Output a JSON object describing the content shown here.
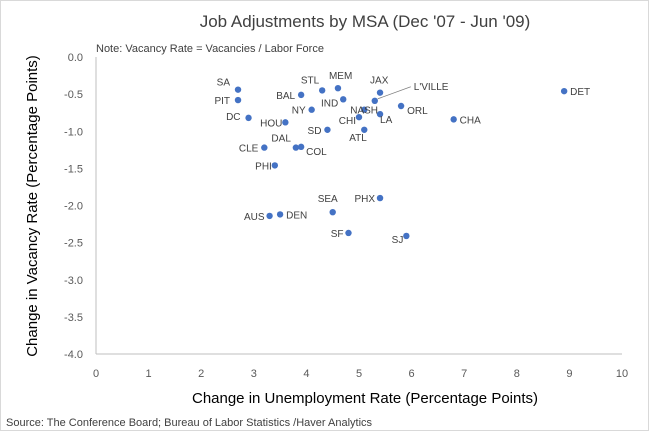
{
  "chart_data": {
    "type": "scatter",
    "title": "Job Adjustments by MSA (Dec '07 - Jun '09)",
    "note": "Note:  Vacancy Rate = Vacancies / Labor Force",
    "xlabel": "Change in Unemployment Rate (Percentage Points)",
    "ylabel": "Change in Vacancy Rate (Percentage Points)",
    "source": "Source: The Conference Board; Bureau of Labor Statistics /Haver Analytics",
    "xlim": [
      0,
      10
    ],
    "ylim": [
      -4.0,
      0.0
    ],
    "x_ticks": [
      0,
      1,
      2,
      3,
      4,
      5,
      6,
      7,
      8,
      9,
      10
    ],
    "x_tick_labels": [
      "0",
      "1",
      "2",
      "3",
      "4",
      "5",
      "6",
      "7",
      "8",
      "9",
      "10"
    ],
    "y_ticks": [
      0.0,
      -0.5,
      -1.0,
      -1.5,
      -2.0,
      -2.5,
      -3.0,
      -3.5,
      -4.0
    ],
    "y_tick_labels": [
      "0.0",
      "-0.5",
      "-1.0",
      "-1.5",
      "-2.0",
      "-2.5",
      "-3.0",
      "-3.5",
      "-4.0"
    ],
    "grid": false,
    "marker_color": "#4472c4",
    "points": [
      {
        "label": "SA",
        "x": 2.7,
        "y": -0.44
      },
      {
        "label": "PIT",
        "x": 2.7,
        "y": -0.58
      },
      {
        "label": "DC",
        "x": 2.9,
        "y": -0.82
      },
      {
        "label": "HOU",
        "x": 3.6,
        "y": -0.88
      },
      {
        "label": "BAL",
        "x": 3.9,
        "y": -0.51
      },
      {
        "label": "STL",
        "x": 4.3,
        "y": -0.45
      },
      {
        "label": "MEM",
        "x": 4.6,
        "y": -0.42
      },
      {
        "label": "NY",
        "x": 4.1,
        "y": -0.71
      },
      {
        "label": "IND",
        "x": 4.7,
        "y": -0.57
      },
      {
        "label": "JAX",
        "x": 5.4,
        "y": -0.48
      },
      {
        "label": "L'VILLE",
        "x": 5.3,
        "y": -0.59
      },
      {
        "label": "NASH",
        "x": 5.1,
        "y": -0.71
      },
      {
        "label": "ORL",
        "x": 5.8,
        "y": -0.66
      },
      {
        "label": "CHI",
        "x": 5.0,
        "y": -0.81
      },
      {
        "label": "LA",
        "x": 5.4,
        "y": -0.77
      },
      {
        "label": "SD",
        "x": 4.4,
        "y": -0.98
      },
      {
        "label": "ATL",
        "x": 5.1,
        "y": -0.98
      },
      {
        "label": "CHA",
        "x": 6.8,
        "y": -0.84
      },
      {
        "label": "DET",
        "x": 8.9,
        "y": -0.46
      },
      {
        "label": "CLE",
        "x": 3.2,
        "y": -1.22
      },
      {
        "label": "DAL",
        "x": 3.8,
        "y": -1.22
      },
      {
        "label": "COL",
        "x": 3.9,
        "y": -1.21
      },
      {
        "label": "PHI",
        "x": 3.4,
        "y": -1.46
      },
      {
        "label": "PHX",
        "x": 5.4,
        "y": -1.9
      },
      {
        "label": "SEA",
        "x": 4.5,
        "y": -2.09
      },
      {
        "label": "AUS",
        "x": 3.3,
        "y": -2.14
      },
      {
        "label": "DEN",
        "x": 3.5,
        "y": -2.12
      },
      {
        "label": "SF",
        "x": 4.8,
        "y": -2.37
      },
      {
        "label": "SJ",
        "x": 5.9,
        "y": -2.41
      }
    ]
  }
}
